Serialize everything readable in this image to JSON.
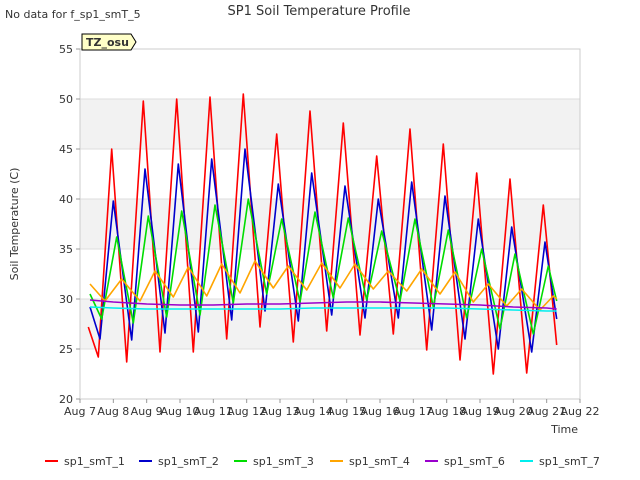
{
  "chart_data": {
    "type": "line",
    "title": "SP1 Soil Temperature Profile",
    "note": "No data for f_sp1_smT_5",
    "badge": "TZ_osu",
    "xlabel": "Time",
    "ylabel": "Soil Temperature (C)",
    "xlim": [
      7,
      22
    ],
    "ylim": [
      20,
      55
    ],
    "xticks": [
      {
        "v": 7,
        "label": "Aug 7"
      },
      {
        "v": 8,
        "label": "Aug 8"
      },
      {
        "v": 9,
        "label": "Aug 9"
      },
      {
        "v": 10,
        "label": "Aug 10"
      },
      {
        "v": 11,
        "label": "Aug 11"
      },
      {
        "v": 12,
        "label": "Aug 12"
      },
      {
        "v": 13,
        "label": "Aug 13"
      },
      {
        "v": 14,
        "label": "Aug 14"
      },
      {
        "v": 15,
        "label": "Aug 15"
      },
      {
        "v": 16,
        "label": "Aug 16"
      },
      {
        "v": 17,
        "label": "Aug 17"
      },
      {
        "v": 18,
        "label": "Aug 18"
      },
      {
        "v": 19,
        "label": "Aug 19"
      },
      {
        "v": 20,
        "label": "Aug 20"
      },
      {
        "v": 21,
        "label": "Aug 21"
      },
      {
        "v": 22,
        "label": "Aug 22"
      }
    ],
    "yticks": [
      20,
      25,
      30,
      35,
      40,
      45,
      50,
      55
    ],
    "grid": true,
    "bands": "alternating light gray horizontal bands",
    "legend": "bottom",
    "series": [
      {
        "name": "sp1_smT_1",
        "color": "#ff0000",
        "x": [
          7.25,
          7.55,
          7.95,
          8.4,
          8.9,
          9.4,
          9.9,
          10.4,
          10.9,
          11.4,
          11.9,
          12.4,
          12.9,
          13.4,
          13.9,
          14.4,
          14.9,
          15.4,
          15.9,
          16.4,
          16.9,
          17.4,
          17.9,
          18.4,
          18.9,
          19.4,
          19.9,
          20.4,
          20.9,
          21.3
        ],
        "y": [
          27.2,
          24.2,
          45,
          23.7,
          49.8,
          24.7,
          50,
          24.7,
          50.2,
          26,
          50.5,
          27.2,
          46.5,
          25.7,
          48.8,
          26.8,
          47.6,
          26.4,
          44.3,
          26.5,
          47,
          24.9,
          45.5,
          23.9,
          42.6,
          22.5,
          42,
          22.6,
          39.4,
          25.4
        ]
      },
      {
        "name": "sp1_smT_2",
        "color": "#0000cc",
        "x": [
          7.3,
          7.6,
          8,
          8.55,
          8.95,
          9.55,
          9.95,
          10.55,
          10.95,
          11.55,
          11.95,
          12.55,
          12.95,
          13.55,
          13.95,
          14.55,
          14.95,
          15.55,
          15.95,
          16.55,
          16.95,
          17.55,
          17.95,
          18.55,
          18.95,
          19.55,
          19.95,
          20.55,
          20.95,
          21.3
        ],
        "y": [
          29.2,
          26,
          39.8,
          25.9,
          43,
          26.6,
          43.5,
          26.7,
          44,
          27.9,
          45,
          28.8,
          41.5,
          27.8,
          42.6,
          28.4,
          41.3,
          28.1,
          40,
          28.1,
          41.7,
          26.9,
          40.3,
          26,
          38,
          25,
          37.2,
          24.7,
          35.7,
          28
        ]
      },
      {
        "name": "sp1_smT_3",
        "color": "#00dd00",
        "x": [
          7.3,
          7.65,
          8.1,
          8.6,
          9.05,
          9.6,
          10.05,
          10.6,
          11.05,
          11.6,
          12.05,
          12.6,
          13.05,
          13.6,
          14.05,
          14.6,
          15.05,
          15.6,
          16.05,
          16.6,
          17.05,
          17.6,
          18.05,
          18.6,
          19.05,
          19.6,
          20.05,
          20.6,
          21.05,
          21.3
        ],
        "y": [
          30.5,
          28,
          36.2,
          27.6,
          38.3,
          28.2,
          38.8,
          28.4,
          39.4,
          29.6,
          40,
          30.5,
          38,
          29.7,
          38.7,
          30.1,
          38.1,
          29.9,
          36.8,
          29.8,
          38,
          29.2,
          36.9,
          28.1,
          35,
          27,
          34.5,
          26.5,
          33.3,
          29.8
        ]
      },
      {
        "name": "sp1_smT_4",
        "color": "#ffa500",
        "x": [
          7.3,
          7.75,
          8.25,
          8.8,
          9.25,
          9.8,
          10.25,
          10.8,
          11.25,
          11.8,
          12.25,
          12.8,
          13.25,
          13.8,
          14.25,
          14.8,
          15.25,
          15.8,
          16.25,
          16.8,
          17.25,
          17.8,
          18.25,
          18.8,
          19.25,
          19.8,
          20.25,
          20.8,
          21.2,
          21.3
        ],
        "y": [
          31.5,
          29.8,
          32,
          29.8,
          32.8,
          30.2,
          33.2,
          30.3,
          33.5,
          30.6,
          33.8,
          31.1,
          33.3,
          30.9,
          33.6,
          31.1,
          33.5,
          31,
          32.8,
          30.8,
          33,
          30.5,
          32.7,
          29.7,
          31.5,
          29.3,
          31,
          28.9,
          30.3,
          30
        ]
      },
      {
        "name": "sp1_smT_6",
        "color": "#9900cc",
        "x": [
          7.3,
          8,
          9,
          10,
          11,
          12,
          13,
          14,
          15,
          16,
          17,
          18,
          19,
          20,
          21,
          21.3
        ],
        "y": [
          29.9,
          29.7,
          29.5,
          29.4,
          29.4,
          29.5,
          29.5,
          29.6,
          29.7,
          29.7,
          29.6,
          29.5,
          29.4,
          29.2,
          29.1,
          29
        ]
      },
      {
        "name": "sp1_smT_7",
        "color": "#00eeee",
        "x": [
          7.3,
          8,
          9,
          10,
          11,
          12,
          13,
          14,
          15,
          16,
          17,
          18,
          19,
          20,
          21,
          21.3
        ],
        "y": [
          29.2,
          29.1,
          29,
          29,
          29,
          29,
          29,
          29.1,
          29.1,
          29.1,
          29.1,
          29.1,
          29,
          28.9,
          28.8,
          28.8
        ]
      }
    ]
  }
}
